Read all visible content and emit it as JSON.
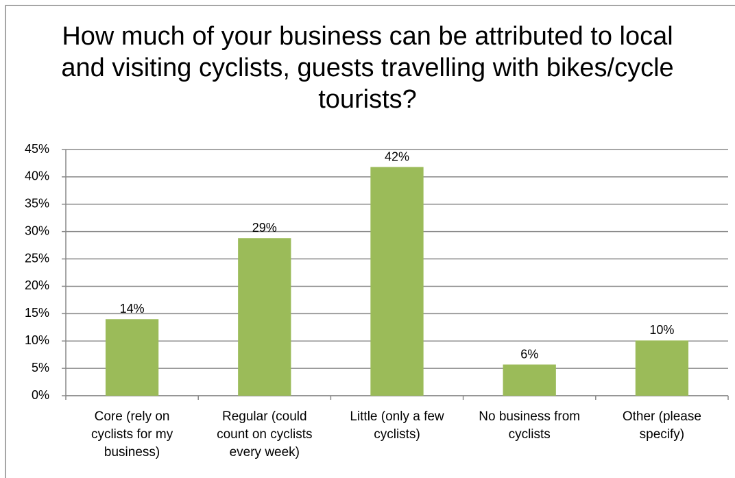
{
  "chart_data": {
    "type": "bar",
    "title": "How much of your business can be attributed to local and visiting cyclists, guests travelling with bikes/cycle tourists?",
    "categories": [
      "Core (rely on cyclists for my business)",
      "Regular (could count on cyclists every week)",
      "Little (only a few cyclists)",
      "No business from cyclists",
      "Other (please specify)"
    ],
    "values": [
      14,
      28.8,
      41.8,
      5.7,
      10.1
    ],
    "value_labels": [
      "14%",
      "29%",
      "42%",
      "6%",
      "10%"
    ],
    "color": "#9bbb59",
    "ylim": [
      0,
      45
    ],
    "yticks": [
      {
        "value": 0,
        "label": "0%"
      },
      {
        "value": 5,
        "label": "5%"
      },
      {
        "value": 10,
        "label": "10%"
      },
      {
        "value": 15,
        "label": "15%"
      },
      {
        "value": 20,
        "label": "20%"
      },
      {
        "value": 25,
        "label": "25%"
      },
      {
        "value": 30,
        "label": "30%"
      },
      {
        "value": 35,
        "label": "35%"
      },
      {
        "value": 40,
        "label": "40%"
      },
      {
        "value": 45,
        "label": "45%"
      }
    ],
    "grid": true
  }
}
